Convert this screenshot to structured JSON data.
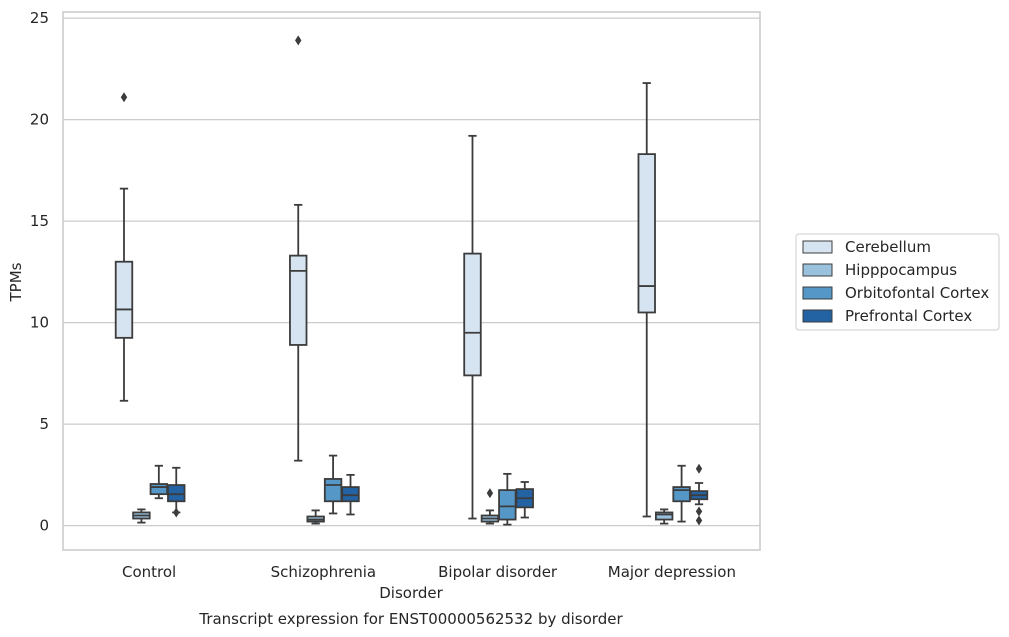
{
  "chart_data": {
    "type": "box",
    "title": "Transcript expression for ENST00000562532 by disorder",
    "xlabel": "Disorder",
    "ylabel": "TPMs",
    "ylim": [
      -1.2,
      25.3
    ],
    "yticks": [
      0,
      5,
      10,
      15,
      20,
      25
    ],
    "grid": "horizontal",
    "legend_position": "right",
    "categories": [
      "Control",
      "Schizophrenia",
      "Bipolar disorder",
      "Major depression"
    ],
    "series": [
      {
        "name": "Cerebellum",
        "color": "#d6e3f0",
        "boxes": [
          {
            "whisker_low": 6.15,
            "q1": 9.25,
            "median": 10.65,
            "q3": 13.0,
            "whisker_high": 16.6,
            "outliers": [
              21.1
            ]
          },
          {
            "whisker_low": 3.2,
            "q1": 8.9,
            "median": 12.55,
            "q3": 13.3,
            "whisker_high": 15.8,
            "outliers": [
              23.9
            ]
          },
          {
            "whisker_low": 0.35,
            "q1": 7.4,
            "median": 9.5,
            "q3": 13.4,
            "whisker_high": 19.2,
            "outliers": []
          },
          {
            "whisker_low": 0.45,
            "q1": 10.5,
            "median": 11.8,
            "q3": 18.3,
            "whisker_high": 21.8,
            "outliers": []
          }
        ]
      },
      {
        "name": "Hipppocampus",
        "color": "#9ac2dd",
        "boxes": [
          {
            "whisker_low": 0.15,
            "q1": 0.35,
            "median": 0.5,
            "q3": 0.65,
            "whisker_high": 0.8,
            "outliers": []
          },
          {
            "whisker_low": 0.1,
            "q1": 0.2,
            "median": 0.3,
            "q3": 0.45,
            "whisker_high": 0.75,
            "outliers": []
          },
          {
            "whisker_low": 0.1,
            "q1": 0.2,
            "median": 0.35,
            "q3": 0.5,
            "whisker_high": 0.75,
            "outliers": [
              1.6
            ]
          },
          {
            "whisker_low": 0.1,
            "q1": 0.3,
            "median": 0.55,
            "q3": 0.65,
            "whisker_high": 0.8,
            "outliers": []
          }
        ]
      },
      {
        "name": "Orbitofontal Cortex",
        "color": "#5597c6",
        "boxes": [
          {
            "whisker_low": 1.35,
            "q1": 1.55,
            "median": 1.9,
            "q3": 2.05,
            "whisker_high": 2.95,
            "outliers": []
          },
          {
            "whisker_low": 0.6,
            "q1": 1.2,
            "median": 2.0,
            "q3": 2.3,
            "whisker_high": 3.45,
            "outliers": []
          },
          {
            "whisker_low": 0.05,
            "q1": 0.3,
            "median": 0.95,
            "q3": 1.75,
            "whisker_high": 2.55,
            "outliers": []
          },
          {
            "whisker_low": 0.2,
            "q1": 1.2,
            "median": 1.75,
            "q3": 1.9,
            "whisker_high": 2.95,
            "outliers": []
          }
        ]
      },
      {
        "name": "Prefrontal Cortex",
        "color": "#2363a4",
        "boxes": [
          {
            "whisker_low": 0.65,
            "q1": 1.2,
            "median": 1.55,
            "q3": 2.0,
            "whisker_high": 2.85,
            "outliers": [
              0.65
            ]
          },
          {
            "whisker_low": 0.55,
            "q1": 1.2,
            "median": 1.5,
            "q3": 1.9,
            "whisker_high": 2.5,
            "outliers": []
          },
          {
            "whisker_low": 0.4,
            "q1": 0.9,
            "median": 1.35,
            "q3": 1.8,
            "whisker_high": 2.15,
            "outliers": []
          },
          {
            "whisker_low": 1.05,
            "q1": 1.3,
            "median": 1.5,
            "q3": 1.7,
            "whisker_high": 2.1,
            "outliers": [
              2.8,
              0.7,
              0.25
            ]
          }
        ]
      }
    ]
  }
}
